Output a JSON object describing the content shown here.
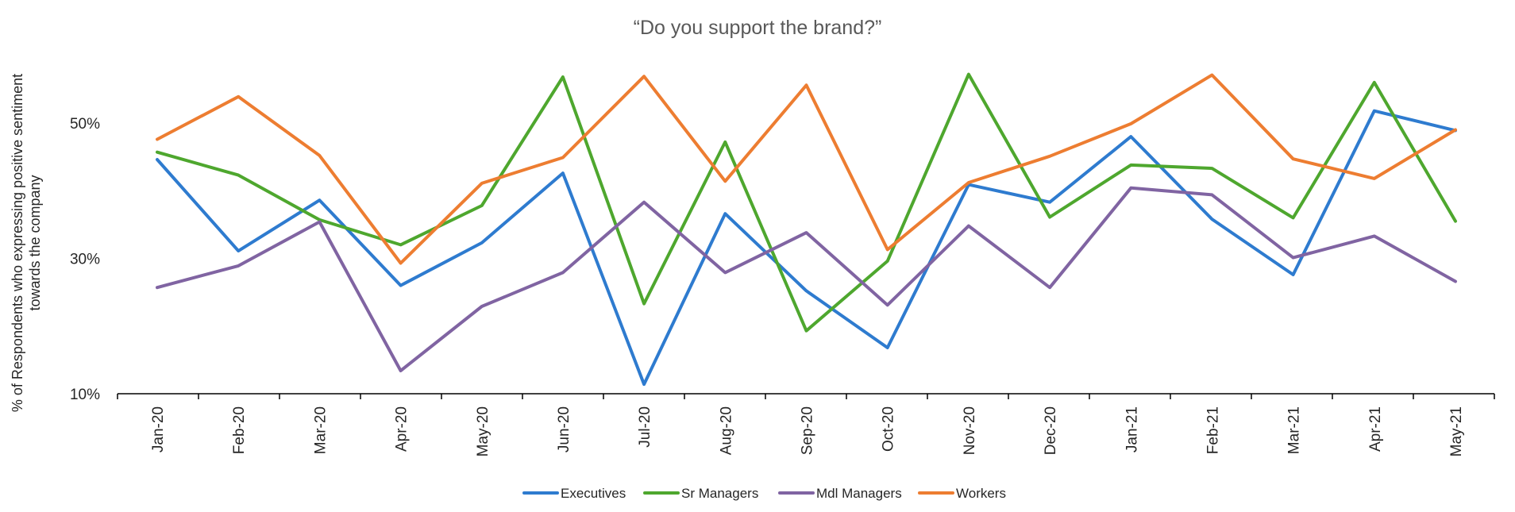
{
  "chart_data": {
    "type": "line",
    "title": "“Do you support the brand?”",
    "ylabel_lines": [
      "% of Respondents who expressing positive sentiment",
      "towards the company"
    ],
    "xlabel": "",
    "categories": [
      "Jan-20",
      "Feb-20",
      "Mar-20",
      "Apr-20",
      "May-20",
      "Jun-20",
      "Jul-20",
      "Aug-20",
      "Sep-20",
      "Oct-20",
      "Nov-20",
      "Dec-20",
      "Jan-21",
      "Feb-21",
      "Mar-21",
      "Apr-21",
      "May-21"
    ],
    "ylim": [
      10,
      60
    ],
    "yticks": [
      10,
      30,
      50
    ],
    "ytick_labels": [
      "10%",
      "30%",
      "50%"
    ],
    "grid": false,
    "legend_position": "bottom",
    "series": [
      {
        "name": "Executives",
        "color": "#2E7BCF",
        "values": [
          44.6,
          31.1,
          38.6,
          26.0,
          32.3,
          42.6,
          11.4,
          36.6,
          25.2,
          16.8,
          40.9,
          38.3,
          48.0,
          35.8,
          27.6,
          51.8,
          48.9
        ]
      },
      {
        "name": "Sr Managers",
        "color": "#4EA72E",
        "values": [
          45.7,
          42.3,
          35.7,
          32.0,
          37.8,
          56.8,
          23.3,
          47.2,
          19.3,
          29.6,
          57.2,
          36.1,
          43.8,
          43.3,
          36.0,
          56.0,
          35.5
        ]
      },
      {
        "name": "Mdl Managers",
        "color": "#8064A2",
        "values": [
          25.7,
          28.9,
          35.4,
          13.4,
          22.9,
          27.9,
          38.3,
          27.9,
          33.8,
          23.1,
          34.8,
          25.7,
          40.4,
          39.4,
          30.1,
          33.3,
          26.6
        ]
      },
      {
        "name": "Workers",
        "color": "#ED7D31",
        "values": [
          47.6,
          53.9,
          45.2,
          29.3,
          41.1,
          44.9,
          56.9,
          41.4,
          55.6,
          31.3,
          41.2,
          45.1,
          49.9,
          57.1,
          44.7,
          41.8,
          49.0
        ]
      }
    ]
  }
}
